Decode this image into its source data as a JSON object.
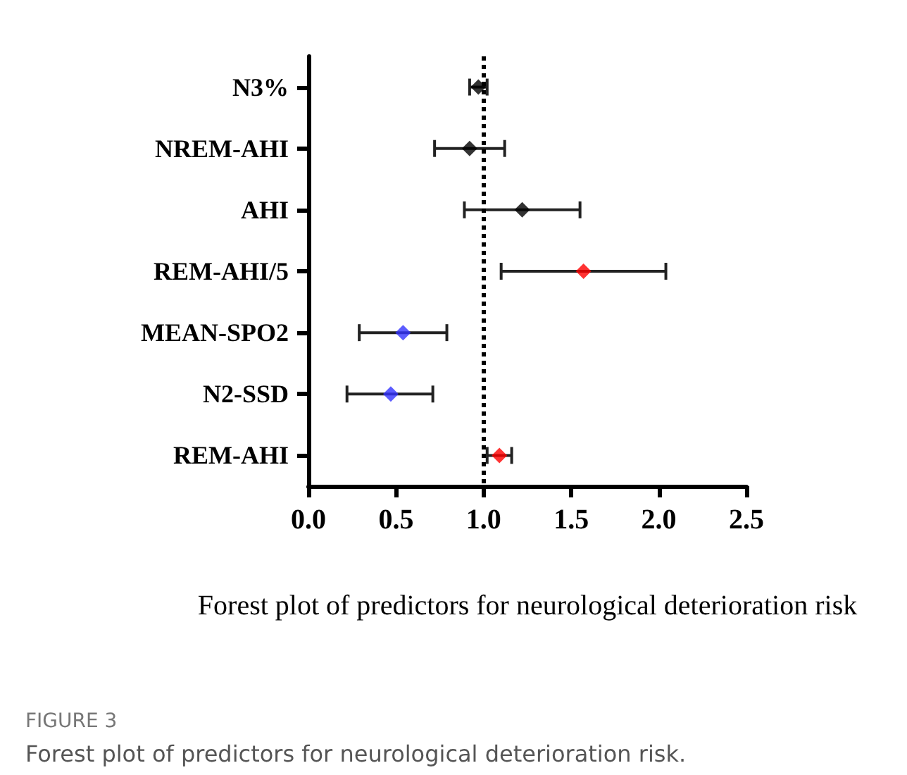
{
  "chart_data": {
    "type": "scatter",
    "orientation": "horizontal",
    "xlabel": "Forest plot of predictors for neurological deterioration risk",
    "categories": [
      "N3%",
      "NREM-AHI",
      "AHI",
      "REM-AHI/5",
      "MEAN-SPO2",
      "N2-SSD",
      "REM-AHI"
    ],
    "values": [
      0.97,
      0.92,
      1.22,
      1.57,
      0.54,
      0.47,
      1.09
    ],
    "colors": [
      "#000000",
      "#000000",
      "#000000",
      "#ff0000",
      "#3333ff",
      "#3333ff",
      "#ff0000"
    ],
    "errors": [
      [
        0.92,
        1.02
      ],
      [
        0.72,
        1.12
      ],
      [
        0.89,
        1.55
      ],
      [
        1.1,
        2.04
      ],
      [
        0.29,
        0.79
      ],
      [
        0.22,
        0.71
      ],
      [
        1.02,
        1.16
      ]
    ],
    "xlim": [
      0,
      2.5
    ],
    "xticks": [
      {
        "value": 0,
        "label": "0.0"
      },
      {
        "value": 0.5,
        "label": "0.5"
      },
      {
        "value": 1,
        "label": "1.0"
      },
      {
        "value": 1.5,
        "label": "1.5"
      },
      {
        "value": 2,
        "label": "2.0"
      },
      {
        "value": 2.5,
        "label": "2.5"
      }
    ],
    "ref_lines": [
      {
        "axis": "x",
        "value": 1,
        "line_style": "dotted",
        "color": "#000000"
      }
    ],
    "marker": "diamond",
    "grid": false,
    "legend": false,
    "annotations": [
      "FIGURE 3",
      "Forest plot of predictors for neurological deterioration risk."
    ]
  }
}
